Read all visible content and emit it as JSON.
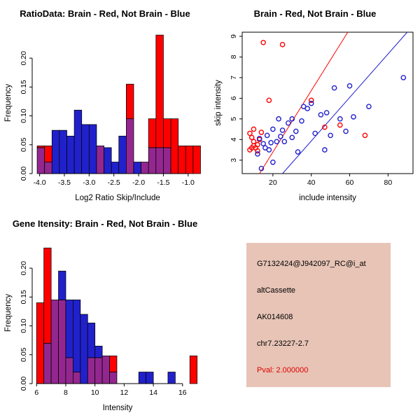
{
  "page": {
    "background": "#FFFFFF"
  },
  "chart_data": [
    {
      "type": "histogram",
      "title": "RatioData: Brain - Red, Not Brain - Blue",
      "xlabel": "Log2 Ratio Skip/Include",
      "ylabel": "Frequency",
      "xlim": [
        -4.15,
        -0.7
      ],
      "ylim": [
        0,
        0.245
      ],
      "xticks": [
        -4.0,
        -3.5,
        -3.0,
        -2.5,
        -2.0,
        -1.5,
        -1.0
      ],
      "yticks": [
        0,
        0.05,
        0.1,
        0.15,
        0.2
      ],
      "x_decimals": 1,
      "y_decimals": 2,
      "bin_width": 0.15,
      "groups": {
        "red": "Brain",
        "blue": "Not Brain"
      },
      "colors": {
        "red": "#FF0000",
        "blue": "#2121CC",
        "overlap": "#93278F"
      },
      "bins": [
        {
          "x": -4.05,
          "red": 0.048,
          "blue": 0.045
        },
        {
          "x": -3.9,
          "red": 0.048,
          "blue": 0.02
        },
        {
          "x": -3.75,
          "red": 0,
          "blue": 0.075
        },
        {
          "x": -3.6,
          "red": 0,
          "blue": 0.075
        },
        {
          "x": -3.45,
          "red": 0,
          "blue": 0.065
        },
        {
          "x": -3.3,
          "red": 0,
          "blue": 0.11
        },
        {
          "x": -3.15,
          "red": 0,
          "blue": 0.085
        },
        {
          "x": -3.0,
          "red": 0,
          "blue": 0.085
        },
        {
          "x": -2.85,
          "red": 0.048,
          "blue": 0.048
        },
        {
          "x": -2.7,
          "red": 0,
          "blue": 0.045
        },
        {
          "x": -2.55,
          "red": 0,
          "blue": 0.02
        },
        {
          "x": -2.4,
          "red": 0,
          "blue": 0.065
        },
        {
          "x": -2.25,
          "red": 0.155,
          "blue": 0.095
        },
        {
          "x": -2.1,
          "red": 0,
          "blue": 0.02
        },
        {
          "x": -1.95,
          "red": 0.02,
          "blue": 0.02
        },
        {
          "x": -1.8,
          "red": 0.095,
          "blue": 0.045
        },
        {
          "x": -1.65,
          "red": 0.24,
          "blue": 0.045
        },
        {
          "x": -1.5,
          "red": 0.095,
          "blue": 0.045
        },
        {
          "x": -1.35,
          "red": 0.095,
          "blue": 0
        },
        {
          "x": -1.2,
          "red": 0.048,
          "blue": 0
        },
        {
          "x": -1.05,
          "red": 0.048,
          "blue": 0
        },
        {
          "x": -0.9,
          "red": 0.048,
          "blue": 0
        }
      ]
    },
    {
      "type": "scatter",
      "title": "Brain - Red, Not Brain - Blue",
      "xlabel": "include intensity",
      "ylabel": "skip intensity",
      "xlim": [
        4,
        93
      ],
      "ylim": [
        2.35,
        9.2
      ],
      "xticks": [
        20,
        40,
        60,
        80
      ],
      "yticks": [
        3,
        4,
        5,
        6,
        7,
        8,
        9
      ],
      "x_decimals": 0,
      "y_decimals": 0,
      "series": [
        {
          "name": "Brain",
          "color": "#FF0000",
          "points": [
            [
              8,
              4.3
            ],
            [
              9,
              4.1
            ],
            [
              9,
              3.6
            ],
            [
              10,
              3.9
            ],
            [
              10,
              3.7
            ],
            [
              10,
              4.5
            ],
            [
              11,
              3.6
            ],
            [
              12,
              3.75
            ],
            [
              12,
              3.45
            ],
            [
              13,
              4.0
            ],
            [
              14,
              4.35
            ],
            [
              8,
              3.5
            ],
            [
              15,
              8.7
            ],
            [
              25,
              8.6
            ],
            [
              18,
              5.9
            ],
            [
              40,
              5.9
            ],
            [
              47,
              4.6
            ],
            [
              55,
              4.7
            ],
            [
              68,
              4.2
            ]
          ]
        },
        {
          "name": "Not Brain",
          "color": "#2121CC",
          "points": [
            [
              12,
              3.3
            ],
            [
              13,
              4.05
            ],
            [
              14,
              2.6
            ],
            [
              15,
              3.8
            ],
            [
              16,
              3.6
            ],
            [
              17,
              4.2
            ],
            [
              18,
              3.5
            ],
            [
              19,
              3.85
            ],
            [
              20,
              4.5
            ],
            [
              20,
              2.9
            ],
            [
              22,
              3.9
            ],
            [
              23,
              5.0
            ],
            [
              24,
              4.15
            ],
            [
              25,
              4.45
            ],
            [
              26,
              3.9
            ],
            [
              28,
              4.8
            ],
            [
              30,
              5.0
            ],
            [
              30,
              4.1
            ],
            [
              32,
              4.4
            ],
            [
              33,
              3.4
            ],
            [
              35,
              4.9
            ],
            [
              36,
              5.6
            ],
            [
              38,
              5.5
            ],
            [
              40,
              5.75
            ],
            [
              42,
              4.3
            ],
            [
              45,
              5.2
            ],
            [
              47,
              3.5
            ],
            [
              48,
              5.3
            ],
            [
              50,
              4.2
            ],
            [
              52,
              6.5
            ],
            [
              55,
              5.0
            ],
            [
              58,
              4.4
            ],
            [
              60,
              6.6
            ],
            [
              62,
              5.1
            ],
            [
              70,
              5.6
            ],
            [
              88,
              7.0
            ]
          ]
        }
      ],
      "lines": [
        {
          "color": "#FF0000",
          "x1": 13,
          "y1": 2.35,
          "x2": 59,
          "y2": 9.2
        },
        {
          "color": "#2121CC",
          "x1": 25,
          "y1": 2.35,
          "x2": 90,
          "y2": 9.2
        }
      ]
    },
    {
      "type": "histogram",
      "title": "Gene Itensity: Brain - Red, Not Brain - Blue",
      "xlabel": "Intensity",
      "ylabel": "Frequency",
      "xlim": [
        5.7,
        17.4
      ],
      "ylim": [
        0,
        0.245
      ],
      "xticks": [
        6,
        8,
        10,
        12,
        14,
        16
      ],
      "yticks": [
        0,
        0.05,
        0.1,
        0.15,
        0.2
      ],
      "x_decimals": 0,
      "y_decimals": 2,
      "bin_width": 0.5,
      "groups": {
        "red": "Brain",
        "blue": "Not Brain"
      },
      "colors": {
        "red": "#FF0000",
        "blue": "#2121CC",
        "overlap": "#93278F"
      },
      "bins": [
        {
          "x": 6.0,
          "red": 0.14,
          "blue": 0
        },
        {
          "x": 6.5,
          "red": 0.235,
          "blue": 0.07
        },
        {
          "x": 7.0,
          "red": 0.145,
          "blue": 0.145
        },
        {
          "x": 7.5,
          "red": 0.145,
          "blue": 0.195
        },
        {
          "x": 8.0,
          "red": 0.045,
          "blue": 0.145
        },
        {
          "x": 8.5,
          "red": 0.02,
          "blue": 0.145
        },
        {
          "x": 9.0,
          "red": 0,
          "blue": 0.12
        },
        {
          "x": 9.5,
          "red": 0.045,
          "blue": 0.105
        },
        {
          "x": 10.0,
          "red": 0.045,
          "blue": 0.065
        },
        {
          "x": 10.5,
          "red": 0.048,
          "blue": 0.048
        },
        {
          "x": 11.0,
          "red": 0.048,
          "blue": 0.02
        },
        {
          "x": 13.0,
          "red": 0,
          "blue": 0.02
        },
        {
          "x": 13.5,
          "red": 0,
          "blue": 0.02
        },
        {
          "x": 15.0,
          "red": 0,
          "blue": 0.02
        },
        {
          "x": 16.5,
          "red": 0.048,
          "blue": 0
        }
      ]
    }
  ],
  "info_panel": {
    "background": "#E7C4B6",
    "lines": [
      {
        "text": "G7132424@J942097_RC@i_at",
        "color": "#000000"
      },
      {
        "text": "altCassette",
        "color": "#000000"
      },
      {
        "text": "AK014608",
        "color": "#000000"
      },
      {
        "text": "chr7.23227-2.7",
        "color": "#000000"
      },
      {
        "text": "Pval: 2.000000",
        "color": "#DE0000"
      }
    ]
  }
}
